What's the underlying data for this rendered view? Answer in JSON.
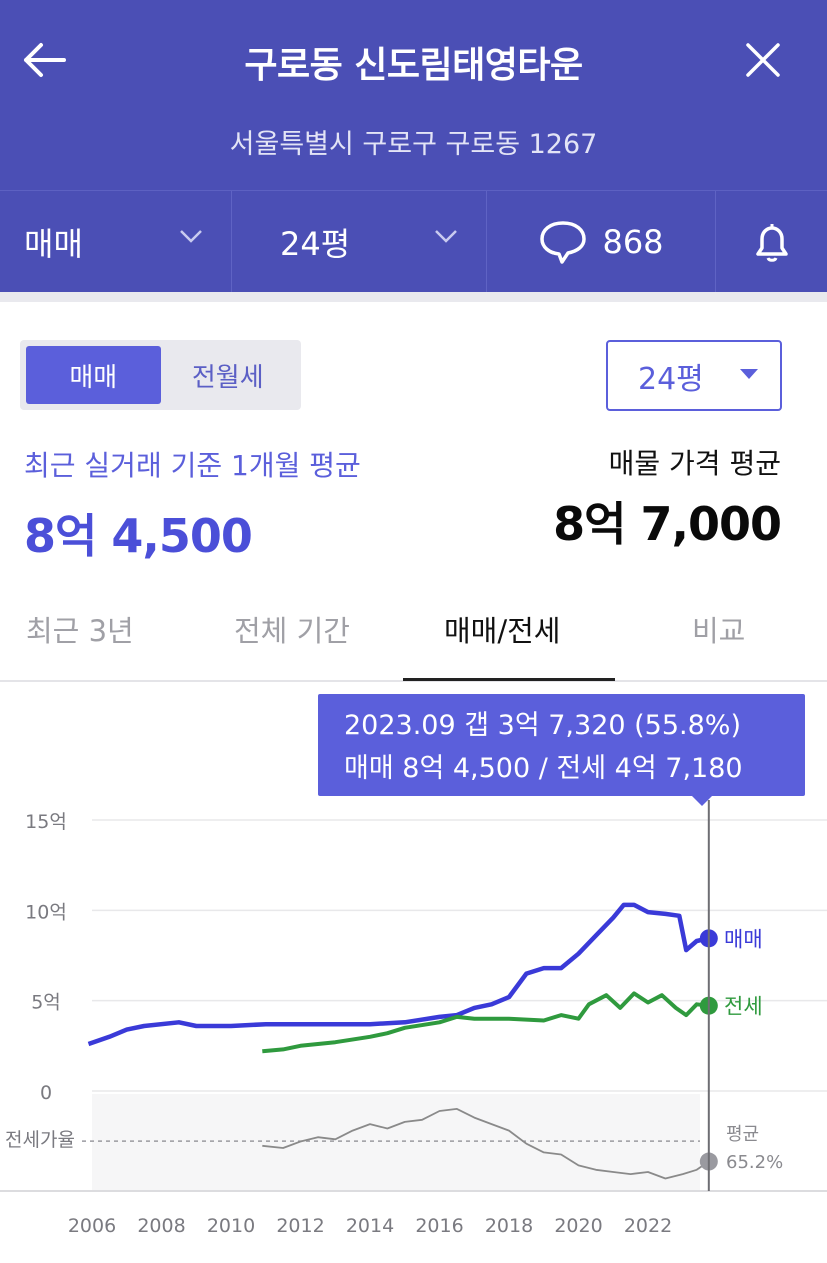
{
  "header": {
    "title": "구로동 신도림태영타운",
    "address": "서울특별시 구로구 구로동 1267"
  },
  "toolbar": {
    "deal_type": "매매",
    "size": "24평",
    "talk_count": "868"
  },
  "toggle": {
    "options": [
      "매매",
      "전월세"
    ],
    "selected": "매매"
  },
  "size_select": {
    "value": "24평"
  },
  "prices": {
    "recent_label": "최근 실거래 기준 1개월 평균",
    "recent_value": "8억 4,500",
    "listing_label": "매물 가격 평균",
    "listing_value": "8억 7,000"
  },
  "tabs": [
    {
      "label": "최근 3년"
    },
    {
      "label": "전체 기간"
    },
    {
      "label": "매매/전세",
      "active": true
    },
    {
      "label": "비교"
    }
  ],
  "tooltip": {
    "line1": "2023.09  갭 3억 7,320 (55.8%)",
    "line2": "매매 8억 4,500 / 전세 4억 7,180"
  },
  "colors": {
    "header_bg": "#4b4fb5",
    "accent": "#5b5fdb",
    "sale": "#3a3ad8",
    "jeonse": "#2f9a3e",
    "ratio": "#8a8a8a"
  },
  "chart_data": {
    "type": "line",
    "y_unit": "억",
    "ylim": [
      0,
      15
    ],
    "y_ticks": [
      "15억",
      "10억",
      "5억",
      "0"
    ],
    "x_ticks": [
      "2006",
      "2008",
      "2010",
      "2012",
      "2014",
      "2016",
      "2018",
      "2020",
      "2022"
    ],
    "series": [
      {
        "name": "매매",
        "x": [
          2005.9,
          2006.5,
          2007.0,
          2007.5,
          2008.5,
          2009.0,
          2010.0,
          2011.0,
          2012.0,
          2013.0,
          2014.0,
          2015.0,
          2016.0,
          2016.5,
          2017.0,
          2017.5,
          2018.0,
          2018.5,
          2019.0,
          2019.5,
          2020.0,
          2020.5,
          2021.0,
          2021.3,
          2021.6,
          2022.0,
          2022.5,
          2022.9,
          2023.1,
          2023.4,
          2023.75
        ],
        "values": [
          2.6,
          3.0,
          3.4,
          3.6,
          3.8,
          3.6,
          3.6,
          3.7,
          3.7,
          3.7,
          3.7,
          3.8,
          4.1,
          4.2,
          4.6,
          4.8,
          5.2,
          6.5,
          6.8,
          6.8,
          7.6,
          8.6,
          9.6,
          10.3,
          10.3,
          9.9,
          9.8,
          9.7,
          7.8,
          8.3,
          8.45
        ]
      },
      {
        "name": "전세",
        "x": [
          2010.9,
          2011.5,
          2012.0,
          2013.0,
          2014.0,
          2014.5,
          2015.0,
          2016.0,
          2016.5,
          2017.0,
          2018.0,
          2019.0,
          2019.5,
          2020.0,
          2020.3,
          2020.8,
          2021.2,
          2021.6,
          2022.0,
          2022.4,
          2022.8,
          2023.1,
          2023.4,
          2023.75
        ],
        "values": [
          2.2,
          2.3,
          2.5,
          2.7,
          3.0,
          3.2,
          3.5,
          3.8,
          4.1,
          4.0,
          4.0,
          3.9,
          4.2,
          4.0,
          4.8,
          5.3,
          4.6,
          5.4,
          4.9,
          5.3,
          4.6,
          4.2,
          4.8,
          4.72
        ]
      },
      {
        "name": "전세가율",
        "x": [
          2010.9,
          2011.5,
          2012.0,
          2012.5,
          2013.0,
          2013.5,
          2014.0,
          2014.5,
          2015.0,
          2015.5,
          2016.0,
          2016.5,
          2017.0,
          2017.5,
          2018.0,
          2018.5,
          2019.0,
          2019.5,
          2020.0,
          2020.5,
          2021.0,
          2021.5,
          2022.0,
          2022.5,
          2023.0,
          2023.4,
          2023.75
        ],
        "values": [
          63,
          62,
          65,
          67,
          66,
          70,
          73,
          71,
          74,
          75,
          79,
          80,
          76,
          73,
          70,
          64,
          60,
          59,
          54,
          52,
          51,
          50,
          51,
          48,
          50,
          52,
          55.8
        ]
      }
    ],
    "ratio_avg": 65.2,
    "ratio_avg_label": "평균",
    "ratio_avg_text": "65.2%",
    "ratio_axis_label": "전세가율",
    "legend": [
      "매매",
      "전세"
    ],
    "selected_x": 2023.75
  }
}
